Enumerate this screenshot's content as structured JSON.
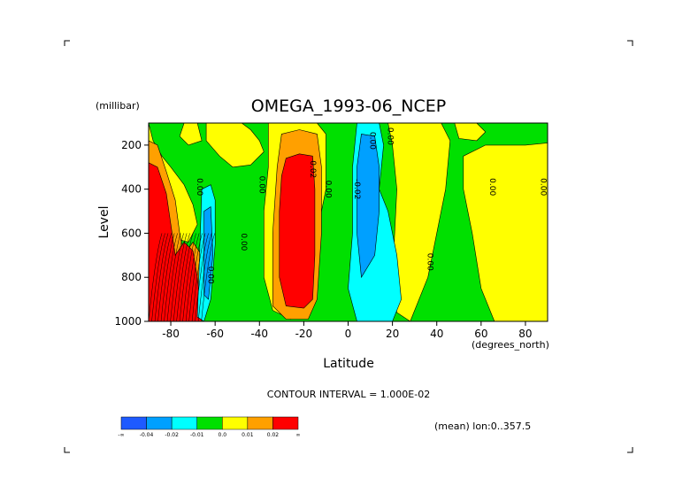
{
  "chart_data": {
    "type": "heatmap",
    "title": "OMEGA_1993-06_NCEP",
    "xlabel": "Latitude",
    "x_unit_label": "(degrees_north)",
    "ylabel": "Level",
    "y_unit_label": "(millibar)",
    "xlim": [
      -90,
      90
    ],
    "ylim": [
      1000,
      100
    ],
    "x_ticks": [
      "-80",
      "-60",
      "-40",
      "-20",
      "0",
      "20",
      "40",
      "60",
      "80"
    ],
    "x_tick_values": [
      -80,
      -60,
      -40,
      -20,
      0,
      20,
      40,
      60,
      80
    ],
    "y_ticks": [
      "200",
      "400",
      "600",
      "800",
      "1000"
    ],
    "y_tick_values": [
      200,
      400,
      600,
      800,
      1000
    ],
    "contour_interval_text": "CONTOUR INTERVAL = 1.000E-02",
    "mean_text": "(mean) lon:0..357.5",
    "contour_labels": [
      {
        "text": "0.00",
        "lat": -68,
        "level": 390
      },
      {
        "text": "0.00",
        "lat": -40,
        "level": 380
      },
      {
        "text": "0.00",
        "lat": -48,
        "level": 640
      },
      {
        "text": "0.00",
        "lat": -63,
        "level": 790
      },
      {
        "text": "0.02",
        "lat": -17,
        "level": 310
      },
      {
        "text": "0.00",
        "lat": -10,
        "level": 400
      },
      {
        "text": "-0.02",
        "lat": 3,
        "level": 400
      },
      {
        "text": "0.00",
        "lat": 10,
        "level": 180
      },
      {
        "text": "0.00",
        "lat": 18,
        "level": 160
      },
      {
        "text": "0.00",
        "lat": 36,
        "level": 730
      },
      {
        "text": "0.00",
        "lat": 64,
        "level": 390
      },
      {
        "text": "0.00",
        "lat": 87,
        "level": 390
      }
    ],
    "legend": {
      "colors": [
        "#1e5aff",
        "#00a0ff",
        "#00ffff",
        "#00e000",
        "#ffff00",
        "#ffa000",
        "#ff0000"
      ],
      "labels": [
        "-∞",
        "-0.04",
        "-0.02",
        "-0.01",
        "0.0",
        "0.01",
        "0.02",
        "∞"
      ]
    },
    "regions_note_levels": {
      "strong_positive": "red",
      "positive": "orange",
      "weak_positive": "yellow",
      "near_zero": "green",
      "weak_negative": "cyan",
      "negative": "blue"
    }
  },
  "colors": {
    "red": "#ff0000",
    "orange": "#ffa000",
    "yellow": "#ffff00",
    "green": "#00e000",
    "cyan": "#00ffff",
    "blue": "#00a0ff",
    "deepblue": "#1e5aff"
  }
}
